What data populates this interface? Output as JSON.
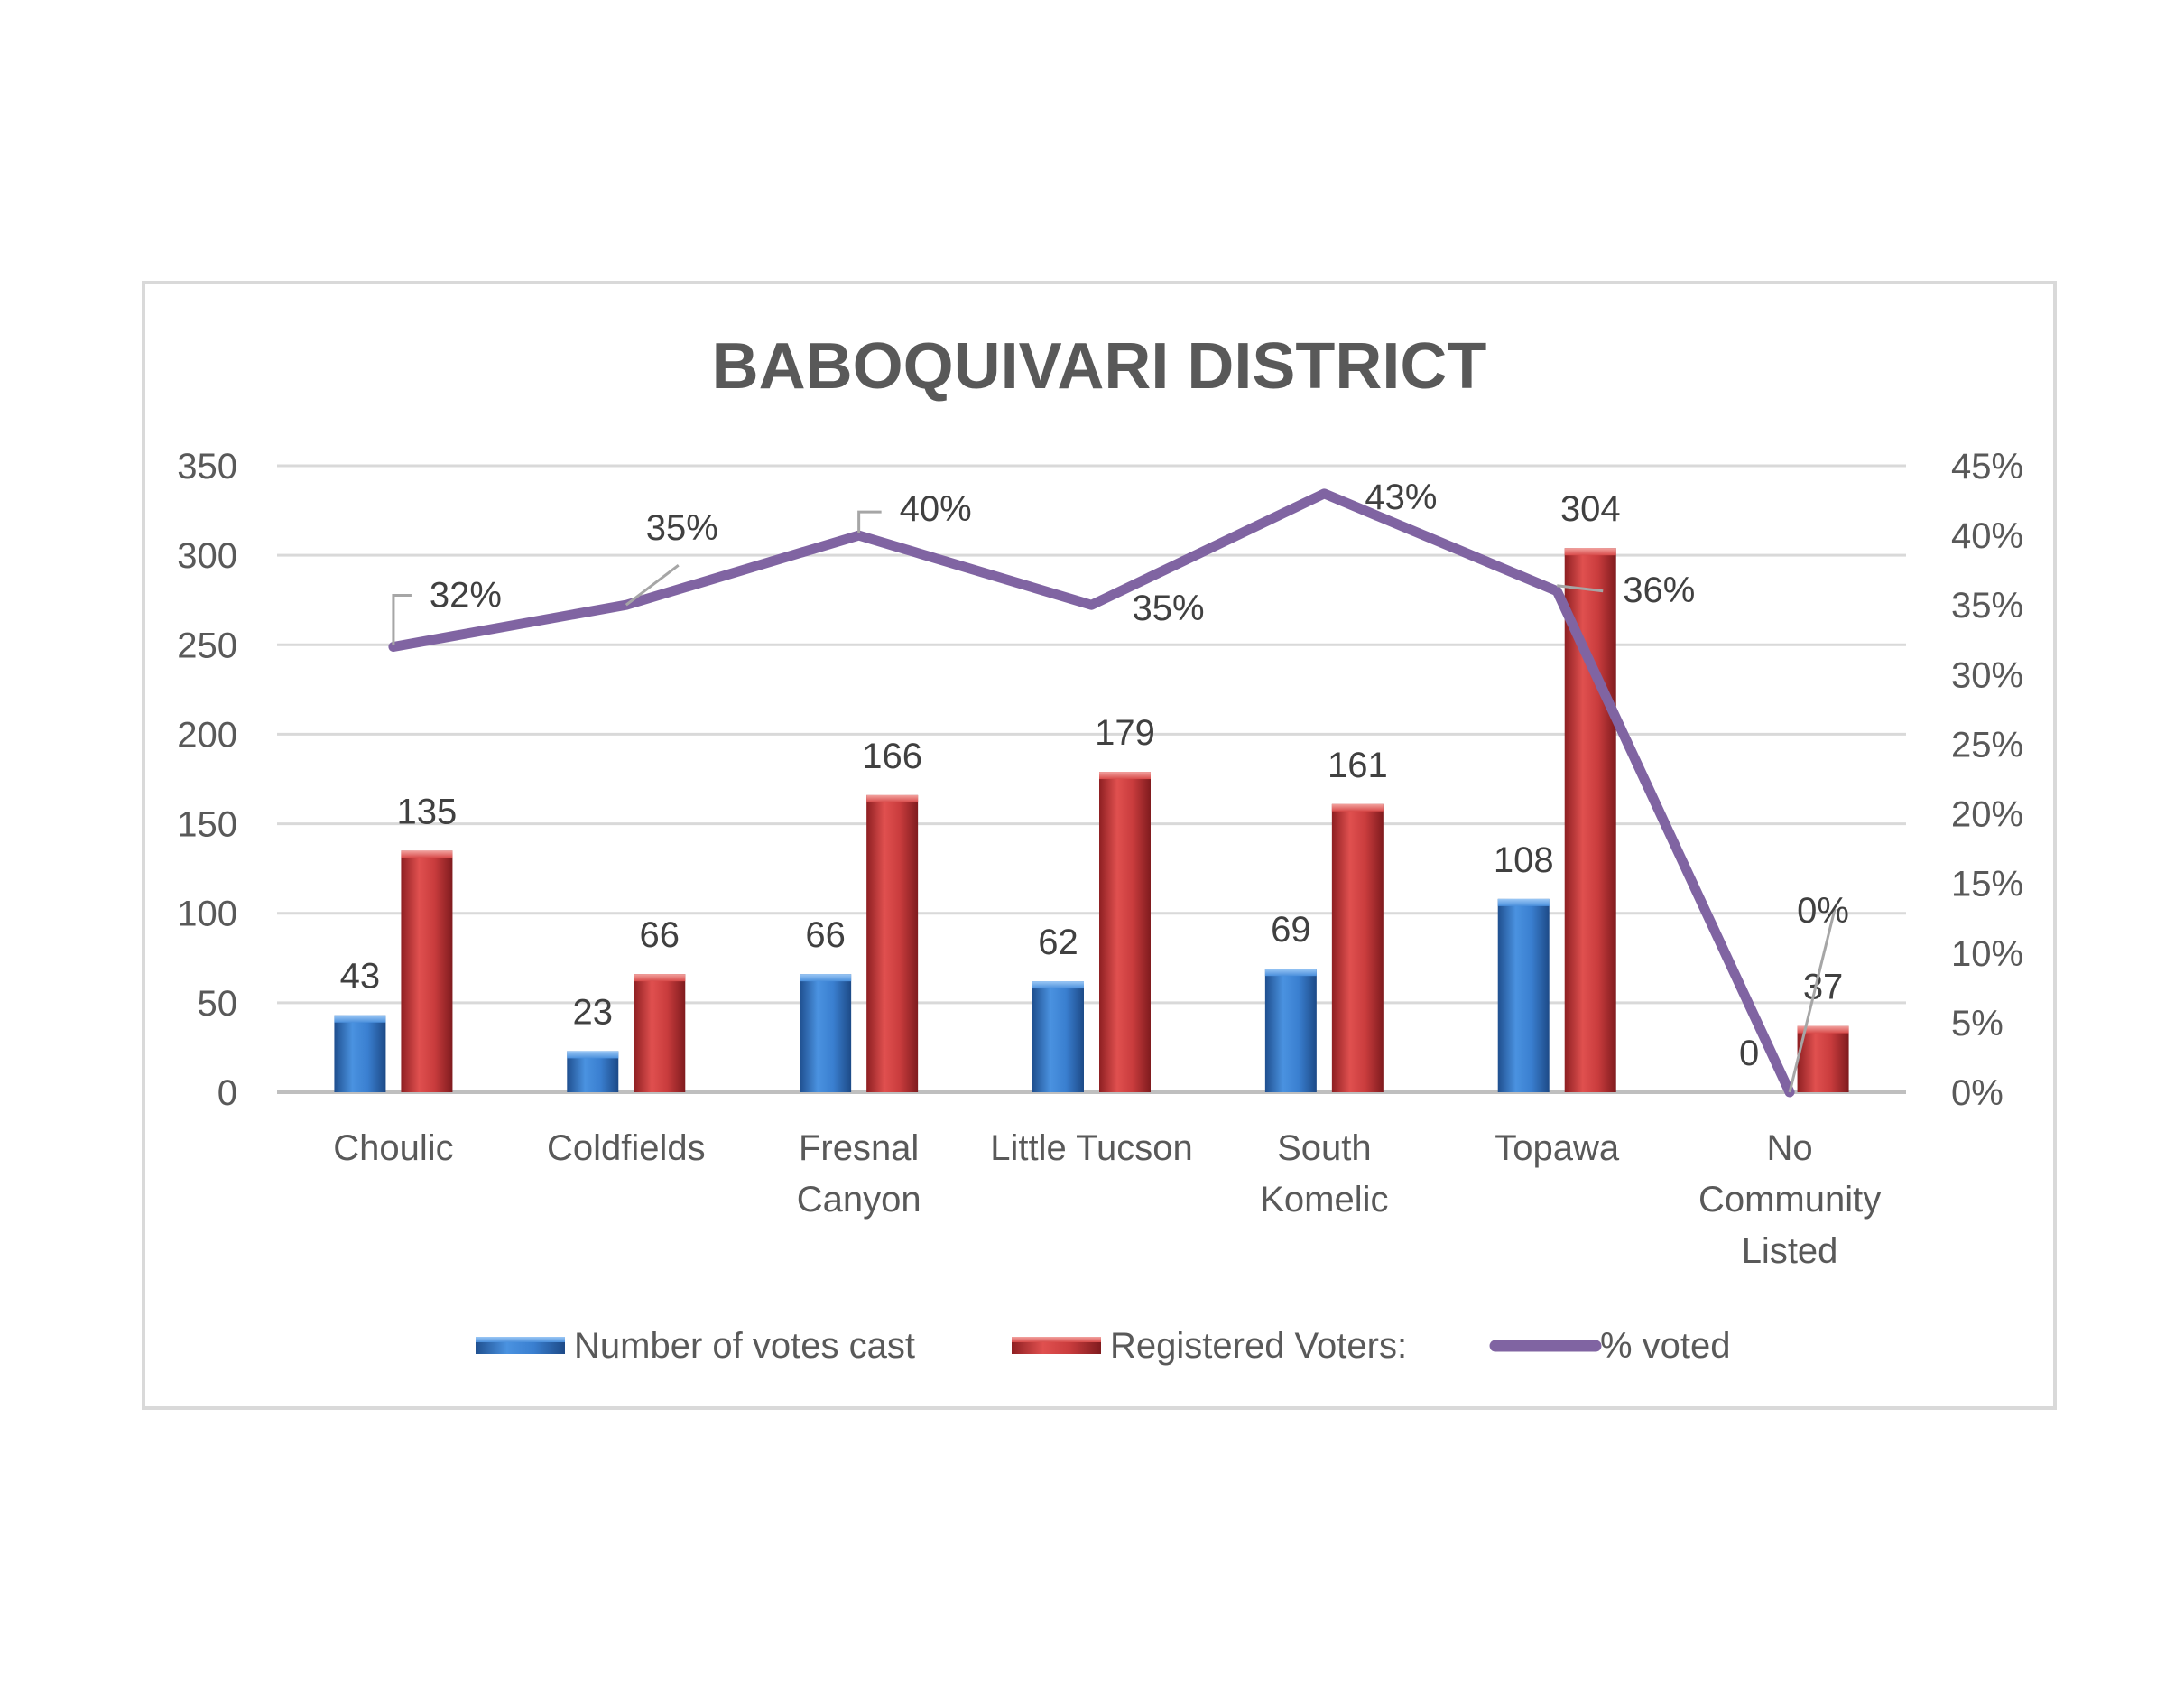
{
  "chart_data": {
    "type": "bar",
    "title": "BABOQUIVARI DISTRICT",
    "categories": [
      [
        "Choulic"
      ],
      [
        "Coldfields"
      ],
      [
        "Fresnal",
        "Canyon"
      ],
      [
        "Little Tucson"
      ],
      [
        "South",
        "Komelic"
      ],
      [
        "Topawa"
      ],
      [
        "No",
        "Community",
        "Listed"
      ]
    ],
    "series": [
      {
        "name": "Number of votes cast",
        "kind": "bar",
        "axis": "left",
        "color": "#2e75c8",
        "values": [
          43,
          23,
          66,
          62,
          69,
          108,
          0
        ],
        "labels": [
          "43",
          "23",
          "66",
          "62",
          "69",
          "108",
          "0"
        ]
      },
      {
        "name": "Registered Voters:",
        "kind": "bar",
        "axis": "left",
        "color": "#c0393b",
        "values": [
          135,
          66,
          166,
          179,
          161,
          304,
          37
        ],
        "labels": [
          "135",
          "66",
          "166",
          "179",
          "161",
          "304",
          "37"
        ]
      },
      {
        "name": "% voted",
        "kind": "line",
        "axis": "right",
        "color": "#8064a2",
        "values": [
          32,
          35,
          40,
          35,
          43,
          36,
          0
        ],
        "labels": [
          "32%",
          "35%",
          "40%",
          "35%",
          "43%",
          "36%",
          "0%"
        ]
      }
    ],
    "y_left": {
      "min": 0,
      "max": 350,
      "step": 50,
      "ticks": [
        "0",
        "50",
        "100",
        "150",
        "200",
        "250",
        "300",
        "350"
      ]
    },
    "y_right": {
      "min": 0,
      "max": 45,
      "step": 5,
      "ticks": [
        "0%",
        "5%",
        "10%",
        "15%",
        "20%",
        "25%",
        "30%",
        "35%",
        "40%",
        "45%"
      ]
    },
    "grid": true,
    "legend_position": "bottom"
  }
}
